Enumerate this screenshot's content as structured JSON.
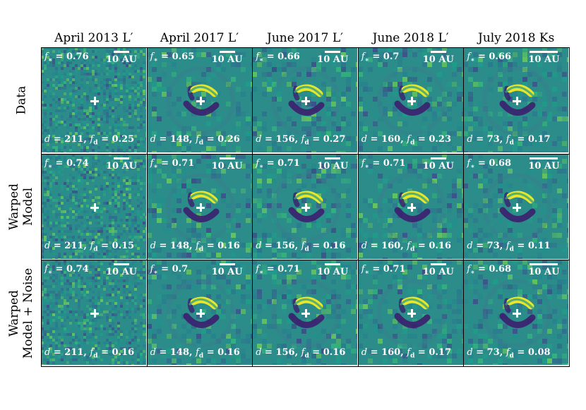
{
  "columns": [
    "April 2013 L′",
    "April 2017 L′",
    "June 2017 L′",
    "June 2018 L′",
    "July 2018 Ks"
  ],
  "rows": [
    {
      "label_lines": [
        "Data"
      ]
    },
    {
      "label_lines": [
        "Warped",
        "Model"
      ]
    },
    {
      "label_lines": [
        "Warped",
        "Model + Noise"
      ]
    }
  ],
  "scale_label": "10 AU",
  "fstar_symbol": "f",
  "fstar_sub": "∗",
  "d_symbol": "d",
  "fd_symbol": "f",
  "fd_sub": "d",
  "panels": [
    [
      {
        "fstar": "0.76",
        "d": "211",
        "fd": "0.25",
        "type": "noise"
      },
      {
        "fstar": "0.65",
        "d": "148",
        "fd": "0.26",
        "type": "disk"
      },
      {
        "fstar": "0.66",
        "d": "156",
        "fd": "0.27",
        "type": "disk"
      },
      {
        "fstar": "0.7",
        "d": "160",
        "fd": "0.23",
        "type": "disk"
      },
      {
        "fstar": "0.66",
        "d": "73",
        "fd": "0.17",
        "type": "disk"
      }
    ],
    [
      {
        "fstar": "0.74",
        "d": "211",
        "fd": "0.15",
        "type": "noise"
      },
      {
        "fstar": "0.71",
        "d": "148",
        "fd": "0.16",
        "type": "disk"
      },
      {
        "fstar": "0.71",
        "d": "156",
        "fd": "0.16",
        "type": "disk"
      },
      {
        "fstar": "0.71",
        "d": "160",
        "fd": "0.16",
        "type": "disk"
      },
      {
        "fstar": "0.68",
        "d": "73",
        "fd": "0.11",
        "type": "disk"
      }
    ],
    [
      {
        "fstar": "0.74",
        "d": "211",
        "fd": "0.16",
        "type": "noise"
      },
      {
        "fstar": "0.7",
        "d": "148",
        "fd": "0.16",
        "type": "disk"
      },
      {
        "fstar": "0.71",
        "d": "156",
        "fd": "0.16",
        "type": "disk"
      },
      {
        "fstar": "0.71",
        "d": "160",
        "fd": "0.17",
        "type": "disk"
      },
      {
        "fstar": "0.68",
        "d": "73",
        "fd": "0.08",
        "type": "disk"
      }
    ]
  ],
  "colors": {
    "background": "#2b8c8a",
    "dark": "#3b1f6e",
    "bright": "#e8e62a",
    "mid": "#35a27f"
  }
}
